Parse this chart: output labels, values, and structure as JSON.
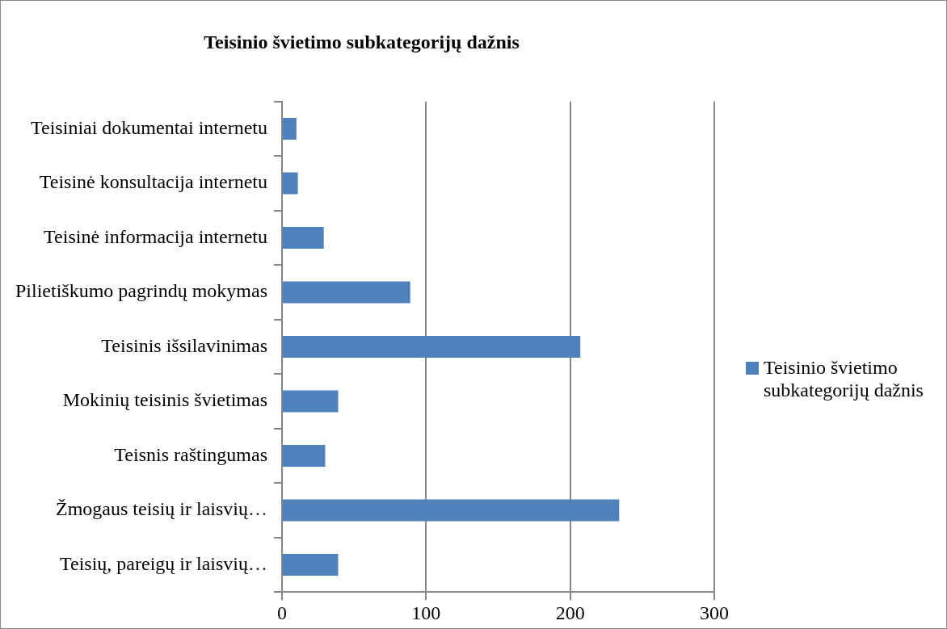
{
  "chart_data": {
    "type": "bar",
    "orientation": "horizontal",
    "title": "Teisinio švietimo subkategorijų dažnis",
    "categories": [
      "Teisiniai dokumentai internetu",
      "Teisinė konsultacija internetu",
      "Teisinė informacija internetu",
      "Pilietiškumo pagrindų mokymas",
      "Teisinis išsilavinimas",
      "Mokinių teisinis švietimas",
      "Teisnis raštingumas",
      "Žmogaus teisių ir laisvių…",
      "Teisių, pareigų ir laisvių…"
    ],
    "series": [
      {
        "name": "Teisinio švietimo subkategorijų dažnis",
        "color": "#4f81bd",
        "values": [
          10,
          11,
          29,
          89,
          207,
          39,
          30,
          234,
          39
        ]
      }
    ],
    "xlim": [
      0,
      300
    ],
    "xticks": [
      0,
      100,
      200,
      300
    ],
    "grid": "x",
    "legend": "right"
  }
}
